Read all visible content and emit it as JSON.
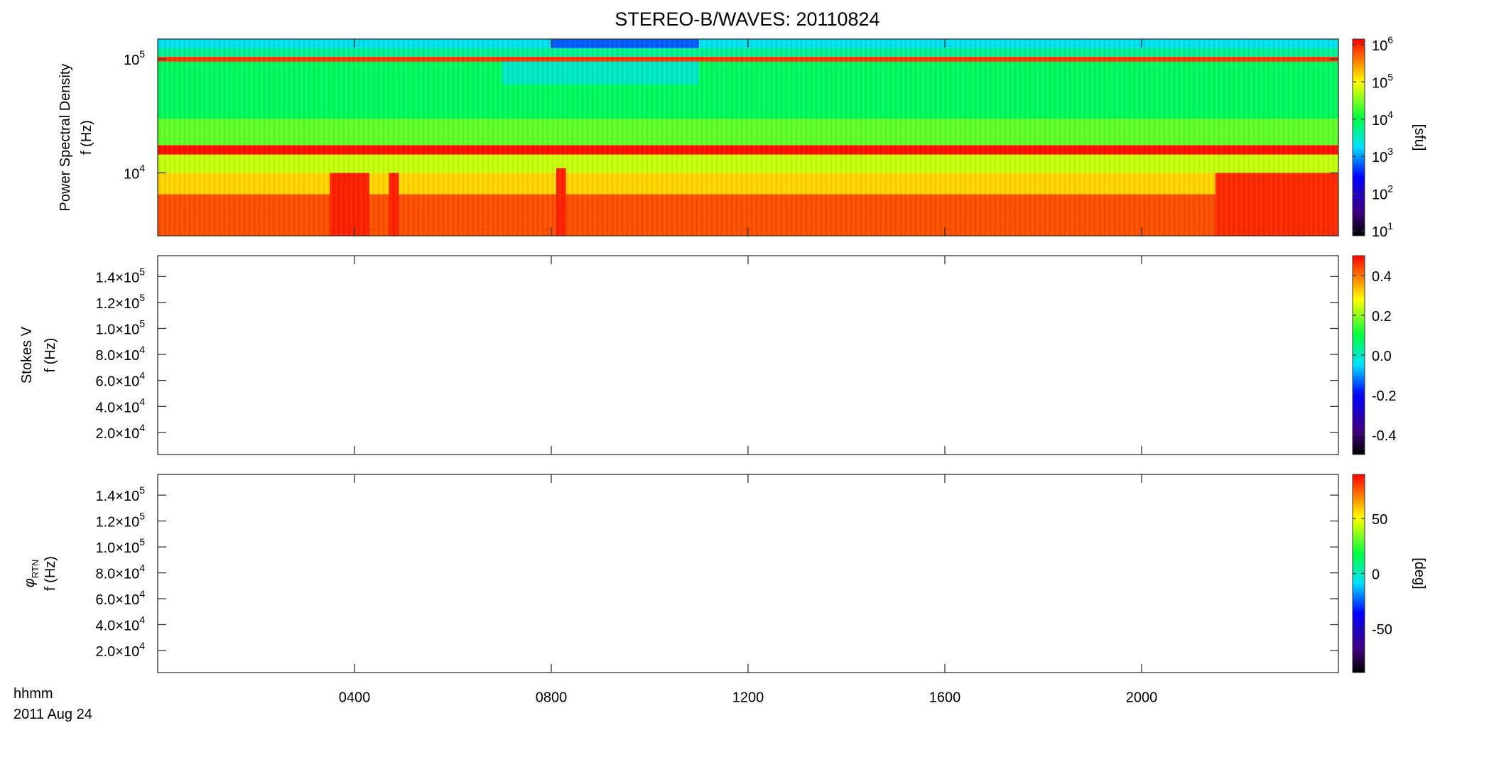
{
  "figure": {
    "title": "STEREO-B/WAVES: 20110824",
    "x_label_lines": [
      "hhmm",
      "2011 Aug 24"
    ],
    "x_axis": {
      "xlim": [
        0,
        24
      ],
      "xticks": [
        {
          "value": 4,
          "label": "0400"
        },
        {
          "value": 8,
          "label": "0800"
        },
        {
          "value": 12,
          "label": "1200"
        },
        {
          "value": 16,
          "label": "1600"
        },
        {
          "value": 20,
          "label": "2000"
        }
      ]
    }
  },
  "chart_data": [
    {
      "type": "spectrogram",
      "ylabel": [
        "Power Spectral Density",
        "f (Hz)"
      ],
      "yscale": "log",
      "ylim": [
        2800,
        150000
      ],
      "yticks": [
        {
          "value": 10000,
          "label": "10",
          "exponent": "4"
        },
        {
          "value": 100000,
          "label": "10",
          "exponent": "5"
        }
      ],
      "colorbar": {
        "label": "[sfu]",
        "scale": "log",
        "clim": [
          7.4,
          1410000
        ],
        "ticks": [
          {
            "value": 10,
            "label": "10",
            "exponent": "1"
          },
          {
            "value": 100,
            "label": "10",
            "exponent": "2"
          },
          {
            "value": 1000,
            "label": "10",
            "exponent": "3"
          },
          {
            "value": 10000,
            "label": "10",
            "exponent": "4"
          },
          {
            "value": 100000,
            "label": "10",
            "exponent": "5"
          },
          {
            "value": 1000000,
            "label": "10",
            "exponent": "6"
          }
        ]
      },
      "bands": [
        {
          "t": [
            0,
            24
          ],
          "f": [
            2800,
            6500
          ],
          "value": 600000
        },
        {
          "t": [
            0,
            24
          ],
          "f": [
            6500,
            10000
          ],
          "value": 150000
        },
        {
          "t": [
            0,
            24
          ],
          "f": [
            10000,
            14500
          ],
          "value": 60000
        },
        {
          "t": [
            0,
            24
          ],
          "f": [
            14500,
            17500
          ],
          "value": 1200000
        },
        {
          "t": [
            0,
            24
          ],
          "f": [
            17500,
            30000
          ],
          "value": 25000
        },
        {
          "t": [
            0,
            24
          ],
          "f": [
            30000,
            95000
          ],
          "value": 8000
        },
        {
          "t": [
            0,
            24
          ],
          "f": [
            95000,
            105000
          ],
          "value": 800000
        },
        {
          "t": [
            0,
            24
          ],
          "f": [
            105000,
            125000
          ],
          "value": 5000
        },
        {
          "t": [
            0,
            24
          ],
          "f": [
            125000,
            150000
          ],
          "value": 2000
        },
        {
          "t": [
            3.5,
            4.3
          ],
          "f": [
            2800,
            10000
          ],
          "value": 1000000
        },
        {
          "t": [
            4.7,
            4.9
          ],
          "f": [
            2800,
            10000
          ],
          "value": 1000000
        },
        {
          "t": [
            8.1,
            8.3
          ],
          "f": [
            2800,
            11000
          ],
          "value": 1000000
        },
        {
          "t": [
            7,
            11
          ],
          "f": [
            60000,
            95000
          ],
          "value": 3000
        },
        {
          "t": [
            8,
            11
          ],
          "f": [
            125000,
            150000
          ],
          "value": 600
        },
        {
          "t": [
            21.5,
            24
          ],
          "f": [
            2800,
            10000
          ],
          "value": 900000
        }
      ]
    },
    {
      "type": "spectrogram",
      "ylabel": [
        "Stokes V",
        "f (Hz)"
      ],
      "yscale": "linear",
      "ylim": [
        3000,
        156000
      ],
      "yticks": [
        {
          "value": 20000,
          "label": "2.0×10",
          "exponent": "4"
        },
        {
          "value": 40000,
          "label": "4.0×10",
          "exponent": "4"
        },
        {
          "value": 60000,
          "label": "6.0×10",
          "exponent": "4"
        },
        {
          "value": 80000,
          "label": "8.0×10",
          "exponent": "4"
        },
        {
          "value": 100000,
          "label": "1.0×10",
          "exponent": "5"
        },
        {
          "value": 120000,
          "label": "1.2×10",
          "exponent": "5"
        },
        {
          "value": 140000,
          "label": "1.4×10",
          "exponent": "5"
        }
      ],
      "colorbar": {
        "scale": "linear",
        "clim": [
          -0.5,
          0.5
        ],
        "ticks": [
          -0.4,
          -0.2,
          {
            "value": 0,
            "label": "0.0"
          },
          0.2,
          0.4
        ]
      },
      "bands": []
    },
    {
      "type": "spectrogram",
      "ylabel": [
        {
          "symbol": "φ",
          "subscript": "RTN"
        },
        "f (Hz)"
      ],
      "yscale": "linear",
      "ylim": [
        3000,
        156000
      ],
      "yticks": [
        {
          "value": 20000,
          "label": "2.0×10",
          "exponent": "4"
        },
        {
          "value": 40000,
          "label": "4.0×10",
          "exponent": "4"
        },
        {
          "value": 60000,
          "label": "6.0×10",
          "exponent": "4"
        },
        {
          "value": 80000,
          "label": "8.0×10",
          "exponent": "4"
        },
        {
          "value": 100000,
          "label": "1.0×10",
          "exponent": "5"
        },
        {
          "value": 120000,
          "label": "1.2×10",
          "exponent": "5"
        },
        {
          "value": 140000,
          "label": "1.4×10",
          "exponent": "5"
        }
      ],
      "colorbar": {
        "label": "[deg]",
        "scale": "linear",
        "clim": [
          -90,
          90
        ],
        "ticks": [
          -50,
          0,
          50
        ]
      },
      "bands": []
    }
  ]
}
